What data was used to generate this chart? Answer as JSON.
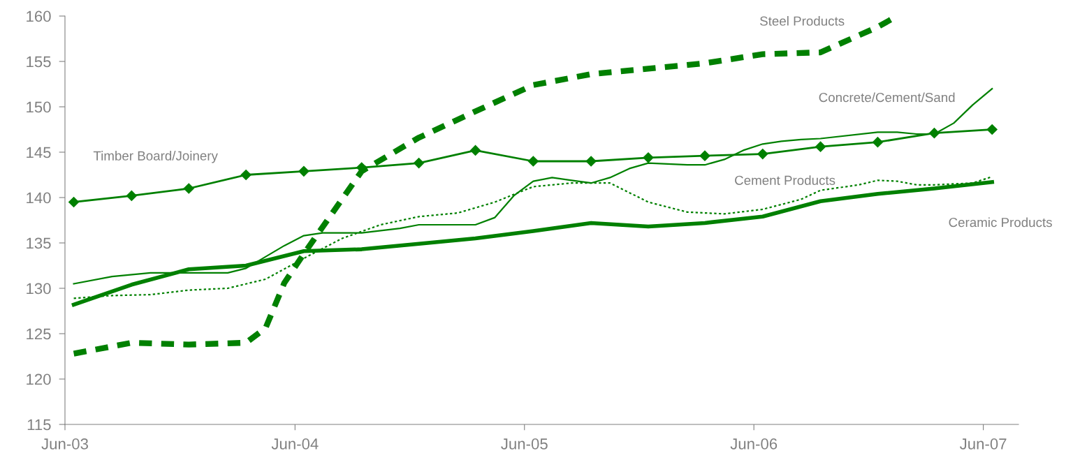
{
  "chart_data": {
    "type": "line",
    "x": [
      "2003-06-15",
      "2003-09-15",
      "2003-12-15",
      "2004-03-15",
      "2004-06-15",
      "2004-09-15",
      "2004-12-15",
      "2005-03-15",
      "2005-06-15",
      "2005-09-15",
      "2005-12-15",
      "2006-03-15",
      "2006-06-15",
      "2006-09-15",
      "2006-12-15",
      "2007-03-15",
      "2007-06-15"
    ],
    "series": [
      {
        "name": "Steel Products",
        "color": "#008000",
        "line_style": "dashed",
        "marker": "none",
        "x": [
          "2003-06-15",
          "2003-09-15",
          "2003-12-15",
          "2004-03-15",
          "2004-04-15",
          "2004-05-15",
          "2004-06-15",
          "2004-09-15",
          "2004-12-15",
          "2005-03-15",
          "2005-06-15",
          "2005-09-15",
          "2005-12-15",
          "2006-03-15",
          "2006-06-15",
          "2006-09-15",
          "2006-12-15",
          "2007-01-15"
        ],
        "values": [
          122.8,
          124.0,
          123.8,
          124.0,
          125.6,
          130.6,
          133.8,
          142.9,
          146.6,
          149.5,
          152.4,
          153.6,
          154.2,
          154.8,
          155.8,
          156.0,
          158.8,
          160.0
        ]
      },
      {
        "name": "Concrete/Cement/Sand",
        "color": "#008000",
        "line_style": "solid",
        "marker": "none",
        "x": [
          "2003-06-15",
          "2003-08-15",
          "2003-10-15",
          "2003-12-15",
          "2004-02-15",
          "2004-03-15",
          "2004-05-15",
          "2004-06-15",
          "2004-07-15",
          "2004-09-15",
          "2004-11-15",
          "2004-12-15",
          "2005-03-15",
          "2005-04-15",
          "2005-05-15",
          "2005-06-15",
          "2005-07-15",
          "2005-08-15",
          "2005-09-15",
          "2005-10-15",
          "2005-11-15",
          "2005-12-15",
          "2006-01-15",
          "2006-02-15",
          "2006-03-15",
          "2006-04-15",
          "2006-05-15",
          "2006-06-15",
          "2006-07-15",
          "2006-08-15",
          "2006-09-15",
          "2006-12-15",
          "2007-01-15",
          "2007-02-15",
          "2007-03-15",
          "2007-04-15",
          "2007-05-15",
          "2007-06-15"
        ],
        "values": [
          130.5,
          131.3,
          131.7,
          131.7,
          131.7,
          132.2,
          134.7,
          135.8,
          136.1,
          136.1,
          136.6,
          137.0,
          137.0,
          137.8,
          140.2,
          141.8,
          142.2,
          141.9,
          141.6,
          142.2,
          143.2,
          143.8,
          143.7,
          143.6,
          143.6,
          144.2,
          145.2,
          145.9,
          146.2,
          146.4,
          146.5,
          147.2,
          147.2,
          147.0,
          147.0,
          148.2,
          150.2,
          152.0
        ]
      },
      {
        "name": "Timber Board/Joinery",
        "color": "#008000",
        "line_style": "solid",
        "marker": "diamond",
        "values": [
          139.5,
          140.2,
          141.0,
          142.5,
          142.9,
          143.3,
          143.8,
          145.2,
          144.0,
          144.0,
          144.4,
          144.6,
          144.8,
          145.6,
          146.1,
          147.1,
          147.5
        ]
      },
      {
        "name": "Cement Products",
        "color": "#008000",
        "line_style": "dotted",
        "marker": "none",
        "x": [
          "2003-06-15",
          "2003-08-15",
          "2003-10-15",
          "2003-12-15",
          "2004-02-15",
          "2004-04-15",
          "2004-06-15",
          "2004-08-15",
          "2004-10-15",
          "2004-12-15",
          "2005-02-15",
          "2005-04-15",
          "2005-06-15",
          "2005-08-15",
          "2005-10-15",
          "2005-12-15",
          "2006-02-15",
          "2006-04-15",
          "2006-06-15",
          "2006-08-15",
          "2006-09-15",
          "2006-11-15",
          "2006-12-15",
          "2007-01-15",
          "2007-02-15",
          "2007-03-15",
          "2007-05-15",
          "2007-06-15"
        ],
        "values": [
          128.9,
          129.2,
          129.3,
          129.8,
          130.0,
          131.0,
          133.3,
          135.5,
          137.0,
          137.9,
          138.3,
          139.5,
          141.2,
          141.6,
          141.6,
          139.5,
          138.4,
          138.2,
          138.7,
          139.8,
          140.8,
          141.4,
          141.9,
          141.8,
          141.4,
          141.4,
          141.6,
          142.3
        ]
      },
      {
        "name": "Ceramic Products",
        "color": "#008000",
        "line_style": "solid",
        "marker": "none",
        "values": [
          128.2,
          130.4,
          132.1,
          132.5,
          134.1,
          134.3,
          134.9,
          135.5,
          136.3,
          137.2,
          136.8,
          137.2,
          137.9,
          139.6,
          140.4,
          141.0,
          141.7
        ]
      }
    ],
    "xlim": [
      "2003-06-01",
      "2007-07-27"
    ],
    "xticks": [
      {
        "value": "2003-06-01",
        "label": "Jun-03"
      },
      {
        "value": "2004-06-01",
        "label": "Jun-04"
      },
      {
        "value": "2005-06-01",
        "label": "Jun-05"
      },
      {
        "value": "2006-06-01",
        "label": "Jun-06"
      },
      {
        "value": "2007-06-01",
        "label": "Jun-07"
      }
    ],
    "ylim": [
      115,
      160
    ],
    "yticks": [
      115,
      120,
      125,
      130,
      135,
      140,
      145,
      150,
      155,
      160
    ],
    "grid": false,
    "legend": false
  }
}
